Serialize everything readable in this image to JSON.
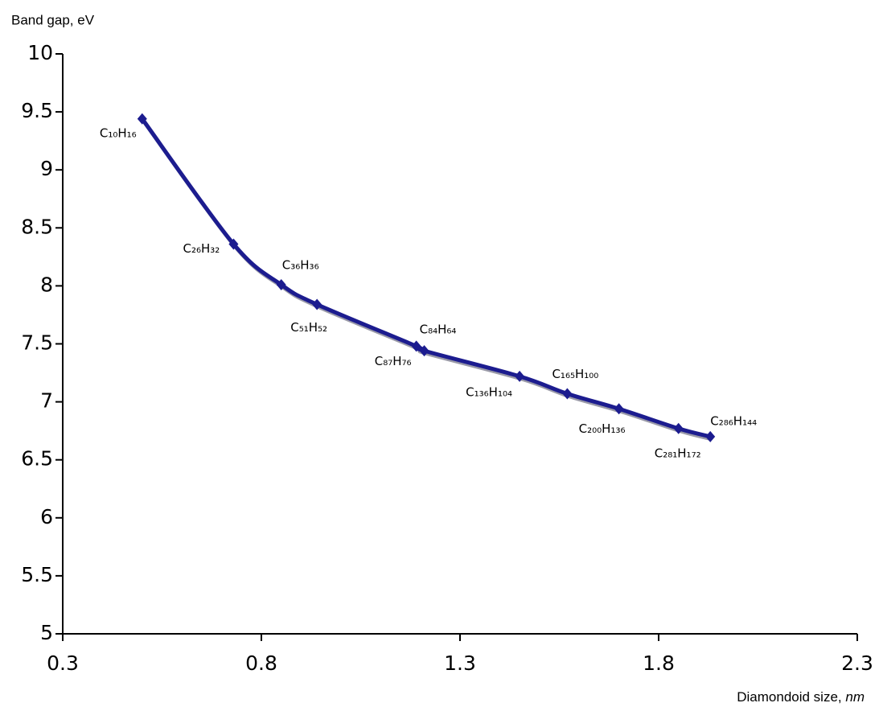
{
  "chart_data": {
    "type": "line",
    "ylabel": "Band gap, eV",
    "xlabel": "Diamondoid size,",
    "xlabel_unit": "nm",
    "x": [
      0.5,
      0.73,
      0.85,
      0.94,
      1.19,
      1.21,
      1.45,
      1.57,
      1.7,
      1.85,
      1.93
    ],
    "series": [
      {
        "color": "#1c1c8f",
        "values": [
          9.44,
          8.36,
          8.01,
          7.84,
          7.48,
          7.44,
          7.22,
          7.07,
          6.94,
          6.77,
          6.7
        ],
        "point_labels": [
          "C₁₀H₁₆",
          "C₂₆H₃₂",
          "C₃₆H₃₆",
          "C₅₁H₅₂",
          "C₈₇H₇₆",
          "C₈₄H₆₄",
          "C₁₃₆H₁₀₄",
          "C₁₆₅H₁₀₀",
          "C₂₀₀H₁₃₆",
          "C₂₈₁H₁₇₂",
          "C₂₈₆H₁₄₄"
        ]
      }
    ],
    "xlim": [
      0.3,
      2.3
    ],
    "xticks": [
      0.3,
      0.8,
      1.3,
      1.8,
      2.3
    ],
    "ylim": [
      5,
      10
    ],
    "yticks": [
      5,
      5.5,
      6,
      6.5,
      7,
      7.5,
      8,
      8.5,
      9,
      9.5,
      10
    ]
  }
}
